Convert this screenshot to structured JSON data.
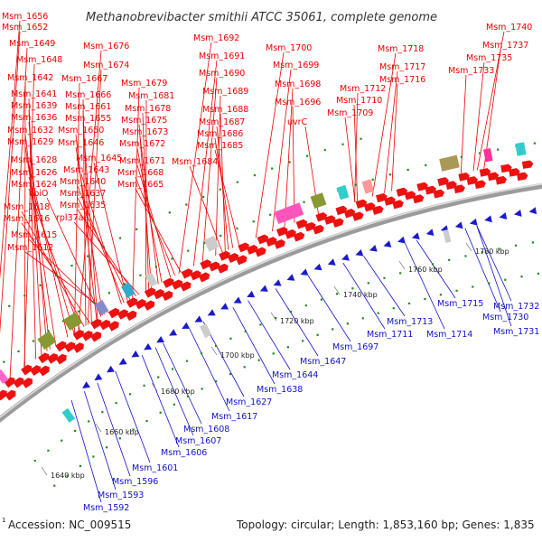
{
  "title": "Methanobrevibacter smithii ATCC 35061, complete genome",
  "footer": {
    "superscript": "1",
    "accession": "Accession: NC_009515",
    "summary": "Topology: circular; Length: 1,853,160 bp; Genes: 1,835"
  },
  "colors": {
    "forward_label": "#ee0000",
    "reverse_label": "#1111cc",
    "forward_gene": "#ee1111",
    "reverse_gene": "#1a1acc",
    "backbone": "#8a8a8a",
    "tick_dot": "#228822"
  },
  "forward_labels": [
    "Msm_1656",
    "Msm_1652",
    "Msm_1649",
    "Msm_1648",
    "Msm_1642",
    "Msm_1641",
    "Msm_1639",
    "Msm_1636",
    "Msm_1632",
    "Msm_1629",
    "Msm_1628",
    "Msm_1626",
    "Msm_1624",
    "cbiO",
    "Msm_1618",
    "Msm_1616",
    "Msm_1615",
    "Msm_1612",
    "Msm_1676",
    "Msm_1674",
    "Msm_1667",
    "Msm_1666",
    "Msm_1661",
    "Msm_1655",
    "Msm_1650",
    "Msm_1646",
    "Msm_1645",
    "Msm_1643",
    "Msm_1640",
    "Msm_1637",
    "Msm_1635",
    "rpl37ae",
    "Msm_1679",
    "Msm_1681",
    "Msm_1678",
    "Msm_1675",
    "Msm_1673",
    "Msm_1672",
    "Msm_1671",
    "Msm_1668",
    "Msm_1665",
    "Msm_1692",
    "Msm_1691",
    "Msm_1690",
    "Msm_1689",
    "Msm_1688",
    "Msm_1687",
    "Msm_1686",
    "Msm_1685",
    "Msm_1684",
    "Msm_1700",
    "Msm_1699",
    "Msm_1698",
    "Msm_1696",
    "uvrC",
    "Msm_1718",
    "Msm_1717",
    "Msm_1716",
    "Msm_1712",
    "Msm_1710",
    "Msm_1709",
    "Msm_1740",
    "Msm_1737",
    "Msm_1735",
    "Msm_1733"
  ],
  "reverse_labels": [
    "Msm_1715",
    "Msm_1713",
    "Msm_1714",
    "Msm_1711",
    "Msm_1697",
    "Msm_1647",
    "Msm_1644",
    "Msm_1638",
    "Msm_1627",
    "Msm_1617",
    "Msm_1608",
    "Msm_1607",
    "Msm_1606",
    "Msm_1601",
    "Msm_1596",
    "Msm_1593",
    "Msm_1592",
    "Msm_1732",
    "Msm_1730",
    "Msm_1731"
  ],
  "ticks": [
    "1640 kbp",
    "1660 kbp",
    "1680 kbp",
    "1700 kbp",
    "1720 kbp",
    "1740 kbp",
    "1760 kbp",
    "1780 kbp"
  ]
}
